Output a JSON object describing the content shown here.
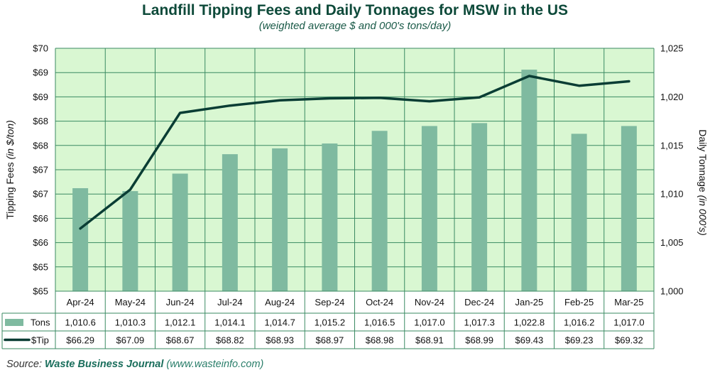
{
  "colors": {
    "plot_bg": "#d9f7d2",
    "grid": "#3a8a62",
    "bar": "#7fbaa0",
    "line": "#0a3d34",
    "title": "#0e4a3a"
  },
  "chart_data": {
    "type": "bar",
    "title": "Landfill Tipping Fees and Daily Tonnages for MSW in the US",
    "subtitle": "(weighted average $ and 000's tons/day)",
    "ylabel_left": "Tipping Fees",
    "ylabel_left_units": "(in $/ton)",
    "ylabel_right": "Daily Tonnage",
    "ylabel_right_units": "(in 000's)",
    "categories": [
      "Apr-24",
      "May-24",
      "Jun-24",
      "Jul-24",
      "Aug-24",
      "Sep-24",
      "Oct-24",
      "Nov-24",
      "Dec-24",
      "Jan-25",
      "Feb-25",
      "Mar-25"
    ],
    "left_axis": {
      "min": 65.0,
      "max": 70.0,
      "step": 0.5,
      "tick_labels": [
        "$65",
        "$65",
        "$66",
        "$66",
        "$67",
        "$67",
        "$68",
        "$68",
        "$69",
        "$69",
        "$70"
      ]
    },
    "right_axis": {
      "min": 1000,
      "max": 1025,
      "step": 5,
      "tick_labels": [
        "1,000",
        "1,005",
        "1,010",
        "1,015",
        "1,020",
        "1,025"
      ]
    },
    "series": [
      {
        "name": "Tons",
        "type": "bar",
        "axis": "right",
        "values": [
          1010.6,
          1010.3,
          1012.1,
          1014.1,
          1014.7,
          1015.2,
          1016.5,
          1017.0,
          1017.3,
          1022.8,
          1016.2,
          1017.0
        ],
        "labels": [
          "1,010.6",
          "1,010.3",
          "1,012.1",
          "1,014.1",
          "1,014.7",
          "1,015.2",
          "1,016.5",
          "1,017.0",
          "1,017.3",
          "1,022.8",
          "1,016.2",
          "1,017.0"
        ]
      },
      {
        "name": "$Tip",
        "type": "line",
        "axis": "left",
        "values": [
          66.29,
          67.09,
          68.67,
          68.82,
          68.93,
          68.97,
          68.98,
          68.91,
          68.99,
          69.43,
          69.23,
          69.32
        ],
        "labels": [
          "$66.29",
          "$67.09",
          "$68.67",
          "$68.82",
          "$68.93",
          "$68.97",
          "$68.98",
          "$68.91",
          "$68.99",
          "$69.43",
          "$69.23",
          "$69.32"
        ]
      }
    ],
    "grid": true,
    "legend": "data-table-left"
  },
  "source": {
    "prefix": "Source: ",
    "name": "Waste Business Journal",
    "url": "(www.wasteinfo.com)"
  }
}
